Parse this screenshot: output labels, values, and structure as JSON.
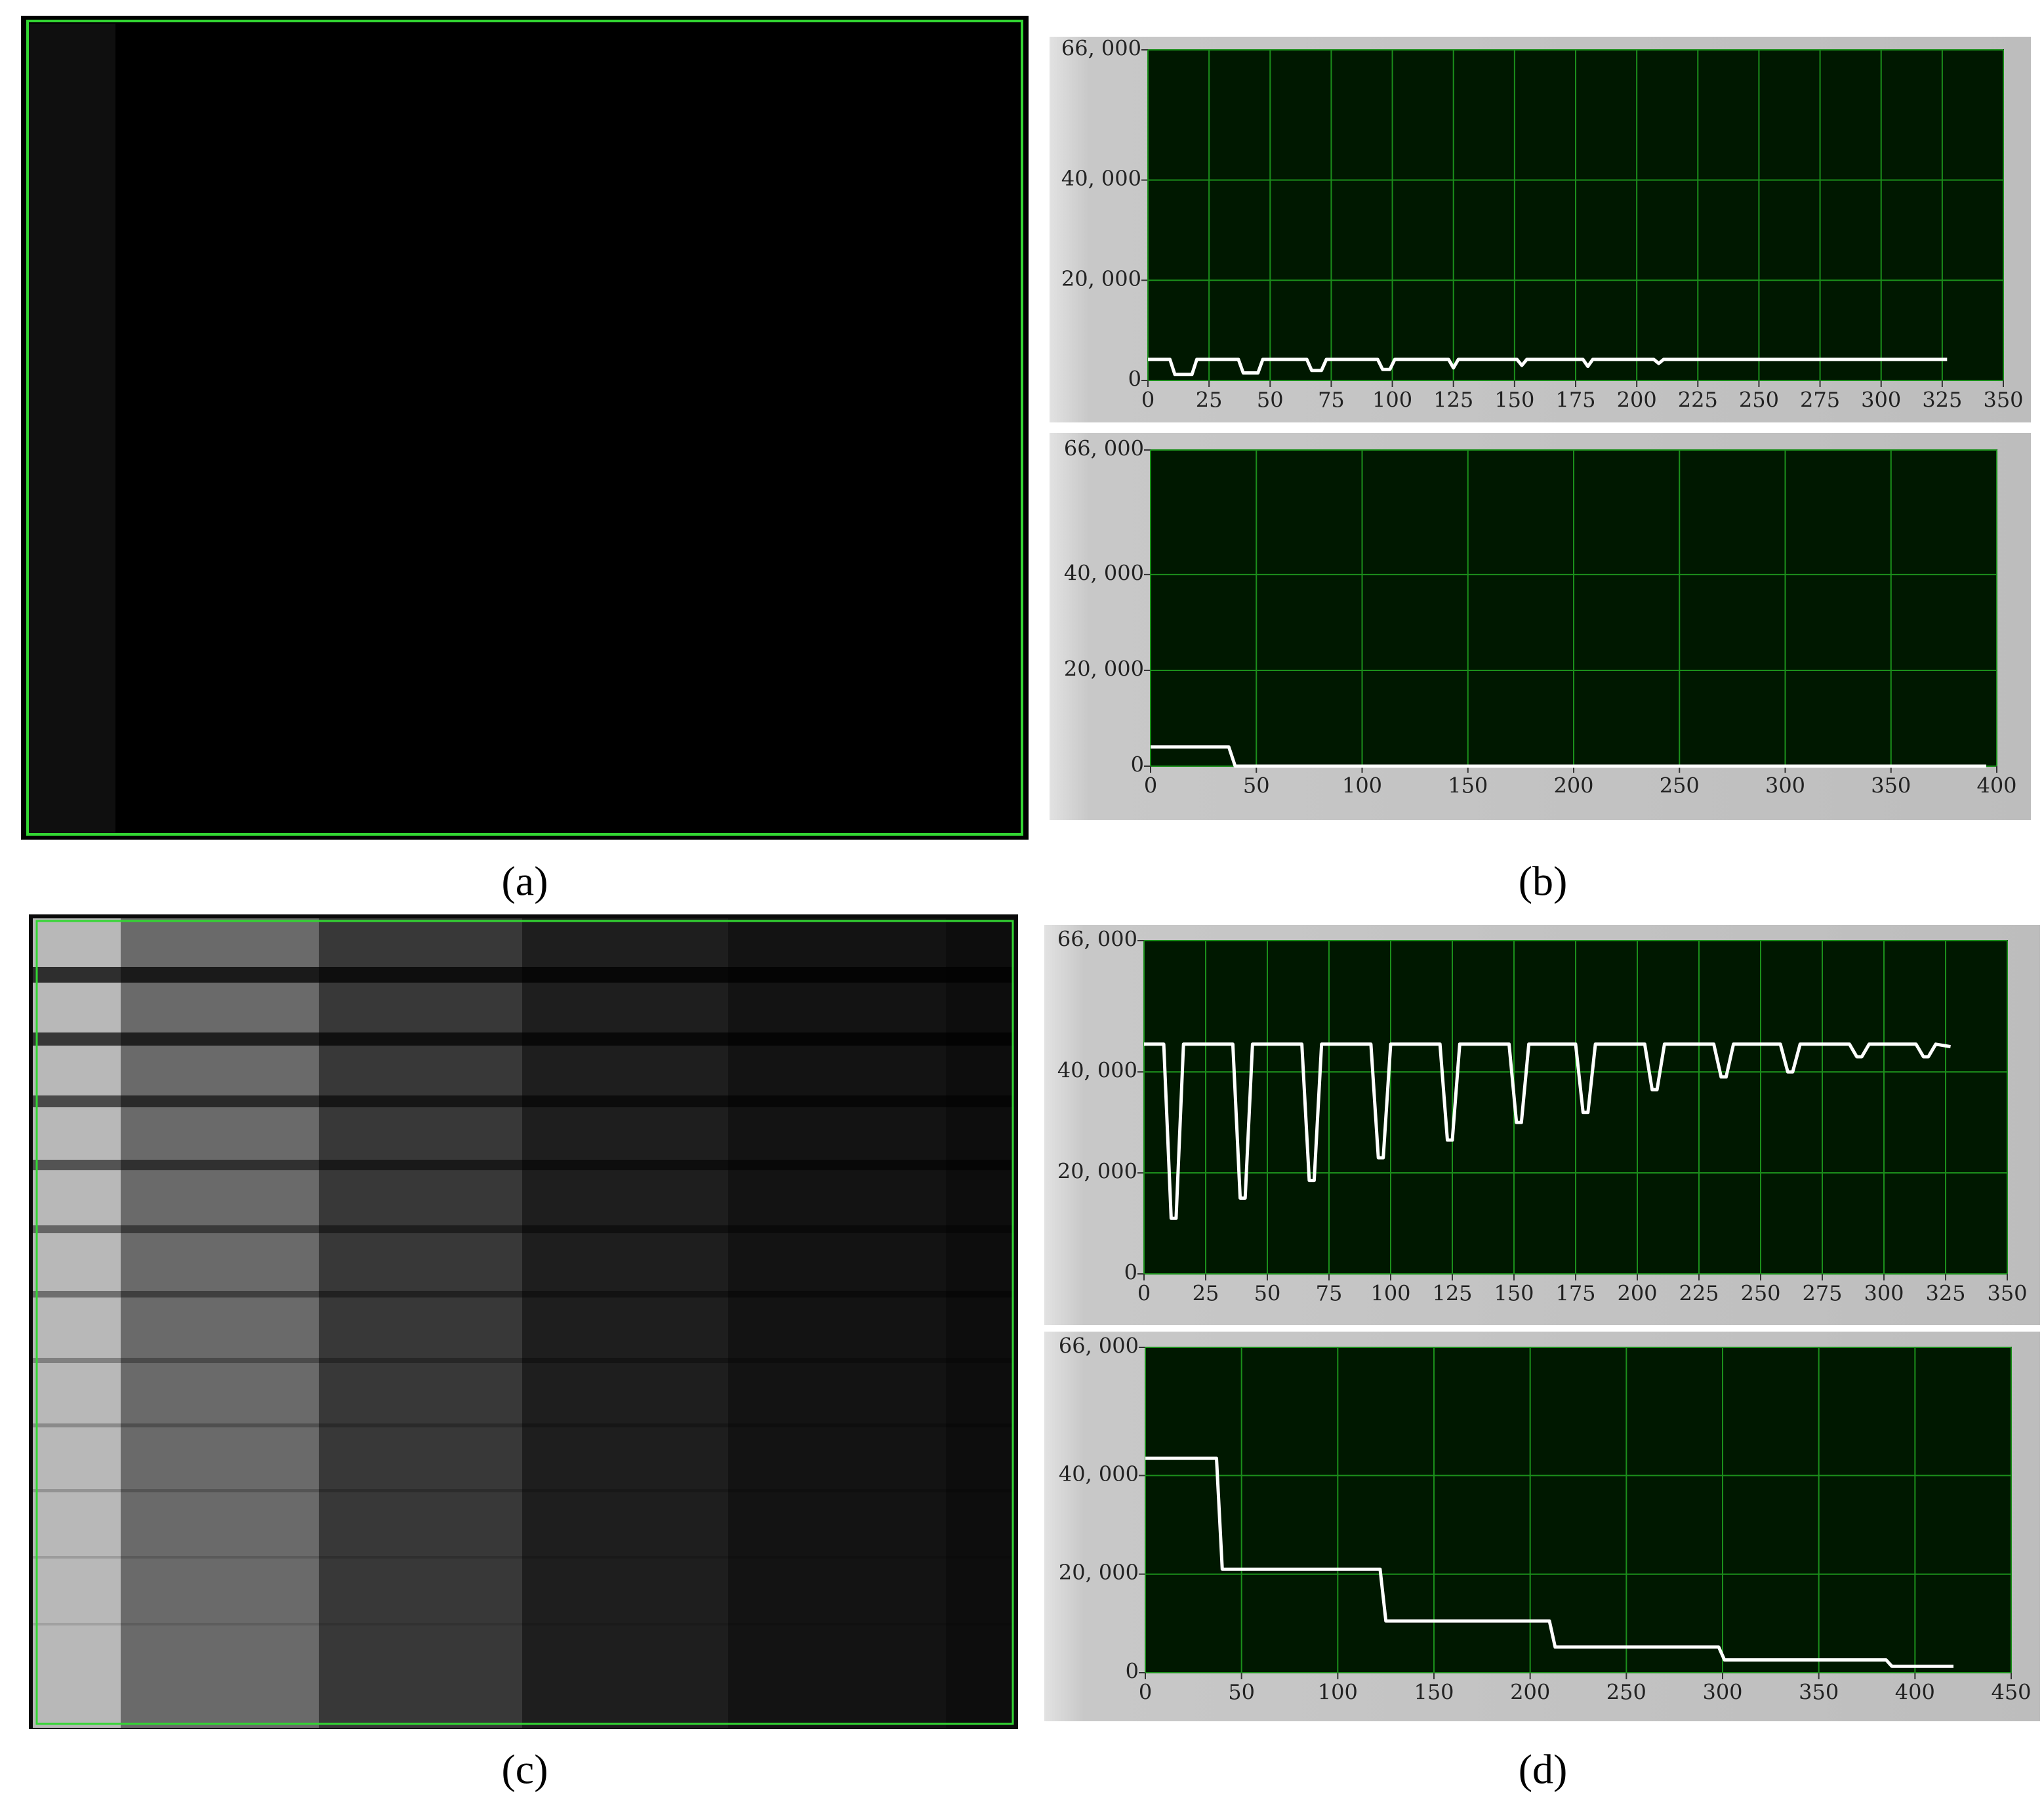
{
  "chart_data": [
    {
      "type": "line",
      "x": [
        0,
        9,
        11,
        18,
        20,
        37,
        39,
        45,
        47,
        65,
        67,
        71,
        73,
        94,
        96,
        99,
        101,
        123,
        125,
        127,
        151,
        153,
        155,
        178,
        180,
        182,
        207,
        209,
        211,
        327
      ],
      "values": [
        4200,
        4200,
        1200,
        1200,
        4200,
        4200,
        1500,
        1500,
        4200,
        4200,
        2000,
        2000,
        4200,
        4200,
        2200,
        2200,
        4200,
        4200,
        2500,
        4200,
        4200,
        3000,
        4200,
        4200,
        2800,
        4200,
        4200,
        3400,
        4200,
        4200
      ],
      "color": "#ffffff",
      "grid": true,
      "xlim": [
        0,
        350
      ],
      "xticks": [
        0,
        25,
        50,
        75,
        100,
        125,
        150,
        175,
        200,
        225,
        250,
        275,
        300,
        325,
        350
      ],
      "ylim": [
        0,
        66000
      ],
      "yticks": [
        0,
        {
          "value": 20000,
          "label": "20, 000"
        },
        {
          "value": 40000,
          "label": "40, 000"
        },
        {
          "value": 66000,
          "label": "66, 000"
        }
      ]
    },
    {
      "type": "line",
      "x": [
        0,
        37,
        40,
        395
      ],
      "values": [
        4000,
        4000,
        0,
        0
      ],
      "color": "#ffffff",
      "grid": true,
      "xlim": [
        0,
        400
      ],
      "xticks": [
        0,
        50,
        100,
        150,
        200,
        250,
        300,
        350,
        400
      ],
      "ylim": [
        0,
        66000
      ],
      "yticks": [
        0,
        {
          "value": 20000,
          "label": "20, 000"
        },
        {
          "value": 40000,
          "label": "40, 000"
        },
        {
          "value": 66000,
          "label": "66, 000"
        }
      ]
    },
    {
      "type": "line",
      "x": [
        0,
        8,
        11,
        13,
        16,
        36,
        39,
        41,
        44,
        64,
        67,
        69,
        72,
        92,
        95,
        97,
        100,
        120,
        123,
        125,
        128,
        148,
        151,
        153,
        156,
        175,
        178,
        180,
        183,
        203,
        206,
        208,
        211,
        231,
        234,
        236,
        239,
        258,
        261,
        263,
        266,
        286,
        289,
        291,
        294,
        313,
        316,
        318,
        321,
        327
      ],
      "values": [
        45500,
        45500,
        11000,
        11000,
        45500,
        45500,
        15000,
        15000,
        45500,
        45500,
        18500,
        18500,
        45500,
        45500,
        23000,
        23000,
        45500,
        45500,
        26500,
        26500,
        45500,
        45500,
        30000,
        30000,
        45500,
        45500,
        32000,
        32000,
        45500,
        45500,
        36500,
        36500,
        45500,
        45500,
        39000,
        39000,
        45500,
        45500,
        40000,
        40000,
        45500,
        45500,
        43000,
        43000,
        45500,
        45500,
        43000,
        43000,
        45500,
        45000
      ],
      "color": "#ffffff",
      "grid": true,
      "xlim": [
        0,
        350
      ],
      "xticks": [
        0,
        25,
        50,
        75,
        100,
        125,
        150,
        175,
        200,
        225,
        250,
        275,
        300,
        325,
        350
      ],
      "ylim": [
        0,
        66000
      ],
      "yticks": [
        0,
        {
          "value": 20000,
          "label": "20, 000"
        },
        {
          "value": 40000,
          "label": "40, 000"
        },
        {
          "value": 66000,
          "label": "66, 000"
        }
      ]
    },
    {
      "type": "line",
      "x": [
        0,
        37,
        40,
        122,
        125,
        210,
        213,
        298,
        301,
        385,
        388,
        420
      ],
      "values": [
        43500,
        43500,
        21000,
        21000,
        10500,
        10500,
        5200,
        5200,
        2600,
        2600,
        1300,
        1300
      ],
      "color": "#ffffff",
      "grid": true,
      "xlim": [
        0,
        450
      ],
      "xticks": [
        0,
        50,
        100,
        150,
        200,
        250,
        300,
        350,
        400,
        450
      ],
      "ylim": [
        0,
        66000
      ],
      "yticks": [
        0,
        {
          "value": 20000,
          "label": "20, 000"
        },
        {
          "value": 40000,
          "label": "40, 000"
        },
        {
          "value": 66000,
          "label": "66, 000"
        }
      ]
    }
  ],
  "captions": [
    "(a)",
    "(b)",
    "(c)",
    "(d)"
  ]
}
